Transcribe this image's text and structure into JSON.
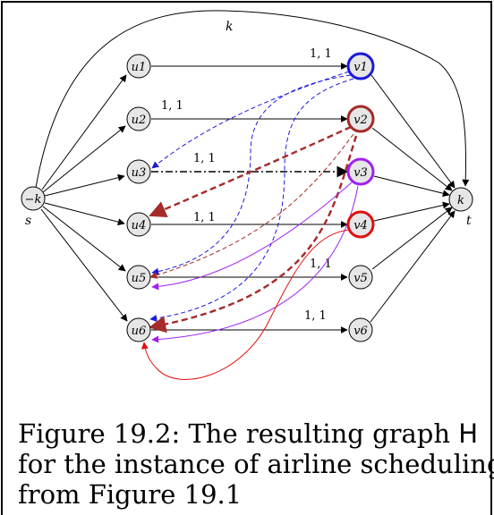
{
  "graph": {
    "source": {
      "label": "s",
      "demand": "−k"
    },
    "sink": {
      "label": "t",
      "demand": "k"
    },
    "top_edge_label": "k",
    "u_nodes": [
      "u1",
      "u2",
      "u3",
      "u4",
      "u5",
      "u6"
    ],
    "v_nodes": [
      "v1",
      "v2",
      "v3",
      "v4",
      "v5",
      "v6"
    ],
    "flight_edges": [
      {
        "from": "u1",
        "to": "v1",
        "label": "1, 1"
      },
      {
        "from": "u2",
        "to": "v2",
        "label": "1, 1"
      },
      {
        "from": "u3",
        "to": "v3",
        "label": "1, 1"
      },
      {
        "from": "u4",
        "to": "v4",
        "label": "1, 1"
      },
      {
        "from": "u5",
        "to": "v5",
        "label": "1, 1"
      },
      {
        "from": "u6",
        "to": "v6",
        "label": "1, 1"
      }
    ],
    "highlight_colors": {
      "v1": "#1a1adc",
      "v2": "#a52a2a",
      "v3": "#a020f0",
      "v4": "#e01010"
    }
  },
  "caption": {
    "line1_prefix": "Figure 19.2: The resulting graph ",
    "line1_symbol": "H",
    "line2": "for the instance of airline scheduling",
    "line3": "from Figure 19.1"
  }
}
